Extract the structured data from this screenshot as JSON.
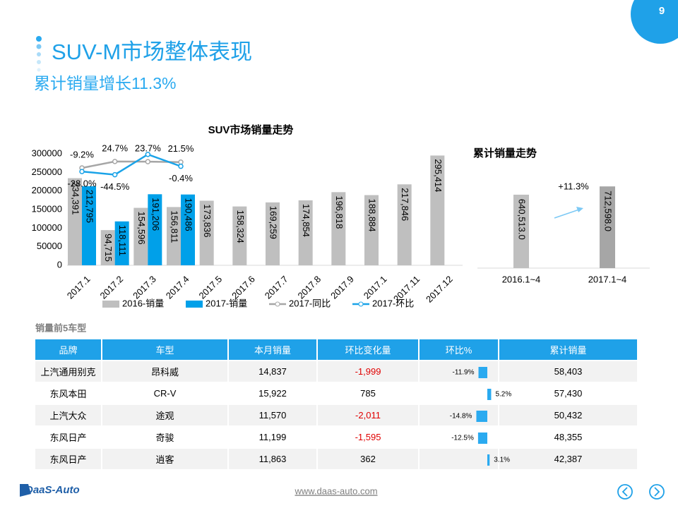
{
  "page_number": "9",
  "header": {
    "title": "SUV-M市场整体表现",
    "subtitle": "累计销量增长11.3%"
  },
  "chart_data": [
    {
      "type": "bar",
      "title": "SUV市场销量走势",
      "categories": [
        "2017.1",
        "2017.2",
        "2017.3",
        "2017.4",
        "2017.5",
        "2017.6",
        "2017.7",
        "2017.8",
        "2017.9",
        "2017.1",
        "2017.11",
        "2017.12"
      ],
      "series": [
        {
          "name": "2016-销量",
          "type": "bar",
          "color": "#bfbfbf",
          "values": [
            234391,
            94715,
            154596,
            156811,
            173836,
            158324,
            169259,
            174854,
            196818,
            188884,
            217846,
            295414
          ],
          "value_labels": [
            "234,391",
            "94,715",
            "154,596",
            "156,811",
            "173,836",
            "158,324",
            "169,259",
            "174,854",
            "196,818",
            "188,884",
            "217,846",
            "295,414"
          ]
        },
        {
          "name": "2017-销量",
          "type": "bar",
          "color": "#00a0e9",
          "values": [
            212795,
            118111,
            191206,
            190486,
            null,
            null,
            null,
            null,
            null,
            null,
            null,
            null
          ],
          "value_labels": [
            "212,795",
            "118,111",
            "191,206",
            "190,486",
            null,
            null,
            null,
            null,
            null,
            null,
            null,
            null
          ]
        },
        {
          "name": "2017-同比",
          "type": "line",
          "axis": "y2",
          "color": "#a6a6a6",
          "values": [
            -9.2,
            24.7,
            23.7,
            21.5,
            null,
            null,
            null,
            null,
            null,
            null,
            null,
            null
          ],
          "value_labels": [
            "-9.2%",
            "24.7%",
            "23.7%",
            "21.5%",
            null,
            null,
            null,
            null,
            null,
            null,
            null,
            null
          ]
        },
        {
          "name": "2017-环比",
          "type": "line",
          "axis": "y2",
          "color": "#1aa3e8",
          "values": [
            -28.0,
            -44.5,
            61.9,
            -0.4,
            null,
            null,
            null,
            null,
            null,
            null,
            null,
            null
          ],
          "value_labels": [
            "-28.0%",
            "-44.5%",
            null,
            "-0.4%",
            null,
            null,
            null,
            null,
            null,
            null,
            null,
            null
          ]
        }
      ],
      "ylim": [
        0,
        300000
      ],
      "yticks": [
        0,
        50000,
        100000,
        150000,
        200000,
        250000,
        300000
      ],
      "y2lim": [
        -520,
        65
      ],
      "legend": "bottom"
    },
    {
      "type": "bar",
      "title": "累计销量走势",
      "categories": [
        "2016.1~4",
        "2017.1~4"
      ],
      "values": [
        640513,
        712598
      ],
      "value_labels": [
        "640,513.0",
        "712,598.0"
      ],
      "colors": [
        "#bfbfbf",
        "#a6a6a6"
      ],
      "ylim": [
        0,
        800000
      ],
      "annotation": "+11.3%"
    }
  ],
  "table": {
    "title": "销量前5车型",
    "header": [
      "品牌",
      "车型",
      "本月销量",
      "环比变化量",
      "环比%",
      "累计销量"
    ],
    "rows": [
      [
        "上汽通用别克",
        "昂科威",
        "14,837",
        "-1,999",
        "58,403"
      ],
      [
        "东风本田",
        "CR-V",
        "15,922",
        "785",
        "57,430"
      ],
      [
        "上汽大众",
        "途观",
        "11,570",
        "-2,011",
        "50,432"
      ],
      [
        "东风日产",
        "奇骏",
        "11,199",
        "-1,595",
        "48,355"
      ],
      [
        "东风日产",
        "逍客",
        "11,863",
        "362",
        "42,387"
      ]
    ],
    "ratio": {
      "values": [
        -11.9,
        5.2,
        -14.8,
        -12.5,
        3.1
      ],
      "value_labels": [
        "-11.9%",
        "5.2%",
        "-14.8%",
        "-12.5%",
        "3.1%"
      ],
      "color": "#2aaaf0"
    }
  },
  "footer": {
    "logo": "DaaS-Auto",
    "url": "www.daas-auto.com"
  }
}
